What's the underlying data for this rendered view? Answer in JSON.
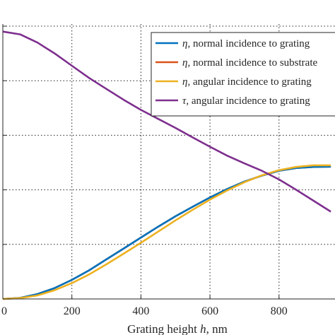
{
  "chart_data": {
    "type": "line",
    "xlabel": "Grating height h, nm",
    "xlabel_prefix": "Grating height ",
    "xlabel_var": "h",
    "xlabel_suffix": ", nm",
    "xlim": [
      0,
      960
    ],
    "ylim": [
      0,
      1.08
    ],
    "x_ticks": [
      0,
      200,
      400,
      600,
      800
    ],
    "x_tick_labels": [
      "0",
      "200",
      "400",
      "600",
      "800"
    ],
    "y_ticks": [
      0,
      0.2,
      0.4,
      0.6,
      0.8,
      1.0
    ],
    "grid": "dotted, every x tick and y tick",
    "legend_position": "top-right",
    "series": [
      {
        "symbol": "η",
        "name": ", normal incidence to grating",
        "color": "#0072BD",
        "x": [
          0,
          50,
          100,
          150,
          200,
          250,
          300,
          350,
          400,
          450,
          500,
          550,
          600,
          650,
          700,
          750,
          800,
          850,
          900,
          950
        ],
        "y": [
          0.0,
          0.004,
          0.018,
          0.04,
          0.07,
          0.105,
          0.145,
          0.185,
          0.225,
          0.265,
          0.303,
          0.338,
          0.372,
          0.403,
          0.43,
          0.452,
          0.47,
          0.48,
          0.484,
          0.485
        ]
      },
      {
        "symbol": "η",
        "name": ", normal incidence to substrate",
        "color": "#D95319",
        "x": [
          0,
          50,
          100,
          150,
          200,
          250,
          300,
          350,
          400,
          450,
          500,
          550,
          600,
          650,
          700,
          750,
          800,
          850,
          900,
          950
        ],
        "y": [
          0.0,
          0.004,
          0.018,
          0.04,
          0.07,
          0.105,
          0.145,
          0.185,
          0.225,
          0.265,
          0.303,
          0.338,
          0.372,
          0.403,
          0.43,
          0.452,
          0.47,
          0.48,
          0.484,
          0.485
        ]
      },
      {
        "symbol": "η",
        "name": ", angular incidence to grating",
        "color": "#EDB120",
        "x": [
          0,
          50,
          100,
          150,
          200,
          250,
          300,
          350,
          400,
          450,
          500,
          550,
          600,
          650,
          700,
          750,
          800,
          850,
          900,
          950
        ],
        "y": [
          0.0,
          0.003,
          0.013,
          0.032,
          0.058,
          0.09,
          0.127,
          0.166,
          0.206,
          0.247,
          0.288,
          0.327,
          0.364,
          0.398,
          0.428,
          0.453,
          0.472,
          0.484,
          0.49,
          0.49
        ]
      },
      {
        "symbol": "τ",
        "name": ", angular incidence to grating",
        "color": "#7E2F8E",
        "x": [
          0,
          50,
          100,
          150,
          200,
          250,
          300,
          350,
          400,
          450,
          500,
          550,
          600,
          650,
          700,
          750,
          800,
          850,
          900,
          950
        ],
        "y": [
          0.98,
          0.97,
          0.94,
          0.9,
          0.855,
          0.81,
          0.77,
          0.73,
          0.693,
          0.66,
          0.627,
          0.592,
          0.558,
          0.525,
          0.497,
          0.47,
          0.438,
          0.4,
          0.36,
          0.32
        ]
      }
    ]
  }
}
